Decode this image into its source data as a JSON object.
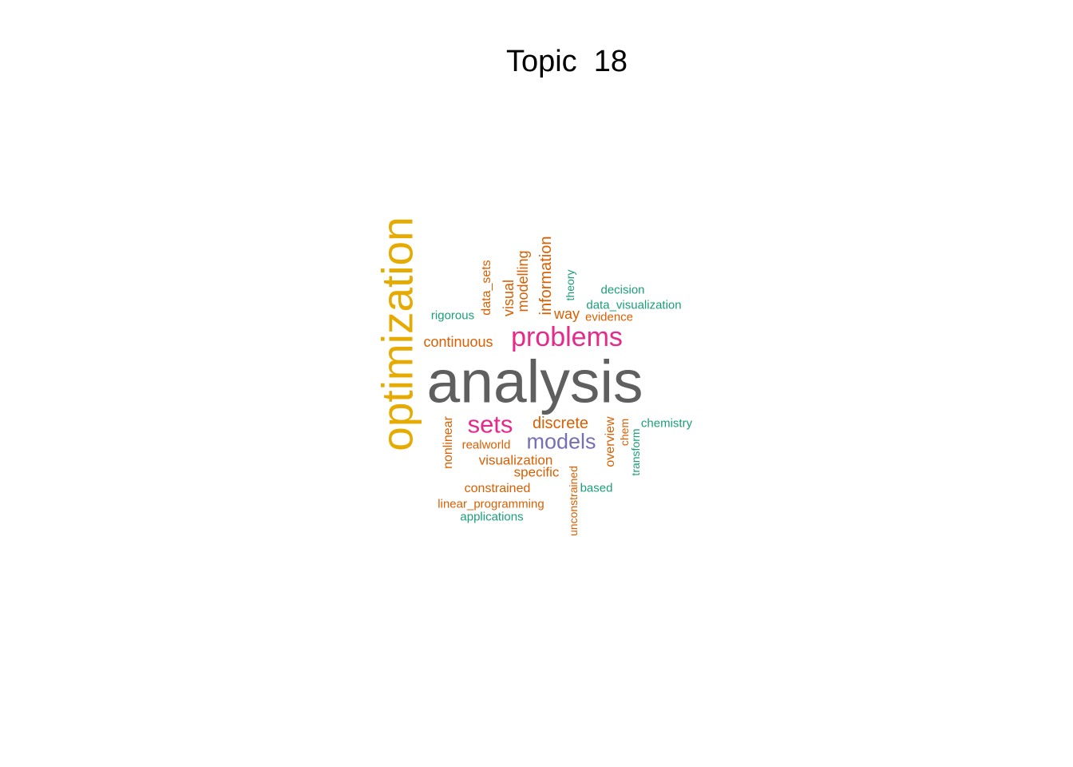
{
  "title": "Topic  18",
  "colors": {
    "gray": "#5f5f5f",
    "gold": "#e6ab02",
    "magenta": "#e7298a",
    "purple": "#7570b3",
    "orange": "#d95f02",
    "teal": "#1b9e77"
  },
  "words": [
    {
      "text": "analysis",
      "color": "gray",
      "rotated": false
    },
    {
      "text": "optimization",
      "color": "gold",
      "rotated": true
    },
    {
      "text": "problems",
      "color": "magenta",
      "rotated": false
    },
    {
      "text": "sets",
      "color": "magenta",
      "rotated": false
    },
    {
      "text": "models",
      "color": "purple",
      "rotated": false
    },
    {
      "text": "discrete",
      "color": "orange",
      "rotated": false
    },
    {
      "text": "continuous",
      "color": "orange",
      "rotated": false
    },
    {
      "text": "information",
      "color": "orange",
      "rotated": true
    },
    {
      "text": "modelling",
      "color": "orange",
      "rotated": true
    },
    {
      "text": "visual",
      "color": "orange",
      "rotated": true
    },
    {
      "text": "data_sets",
      "color": "orange",
      "rotated": true
    },
    {
      "text": "way",
      "color": "orange",
      "rotated": false
    },
    {
      "text": "theory",
      "color": "teal",
      "rotated": true
    },
    {
      "text": "decision",
      "color": "teal",
      "rotated": false
    },
    {
      "text": "data_visualization",
      "color": "teal",
      "rotated": false
    },
    {
      "text": "evidence",
      "color": "orange",
      "rotated": false
    },
    {
      "text": "rigorous",
      "color": "teal",
      "rotated": false
    },
    {
      "text": "nonlinear",
      "color": "orange",
      "rotated": true
    },
    {
      "text": "realworld",
      "color": "orange",
      "rotated": false
    },
    {
      "text": "visualization",
      "color": "orange",
      "rotated": false
    },
    {
      "text": "specific",
      "color": "orange",
      "rotated": false
    },
    {
      "text": "constrained",
      "color": "orange",
      "rotated": false
    },
    {
      "text": "linear_programming",
      "color": "orange",
      "rotated": false
    },
    {
      "text": "applications",
      "color": "teal",
      "rotated": false
    },
    {
      "text": "unconstrained",
      "color": "orange",
      "rotated": true
    },
    {
      "text": "based",
      "color": "teal",
      "rotated": false
    },
    {
      "text": "overview",
      "color": "orange",
      "rotated": true
    },
    {
      "text": "chem",
      "color": "orange",
      "rotated": true
    },
    {
      "text": "transform",
      "color": "teal",
      "rotated": true
    },
    {
      "text": "chemistry",
      "color": "teal",
      "rotated": false
    }
  ]
}
